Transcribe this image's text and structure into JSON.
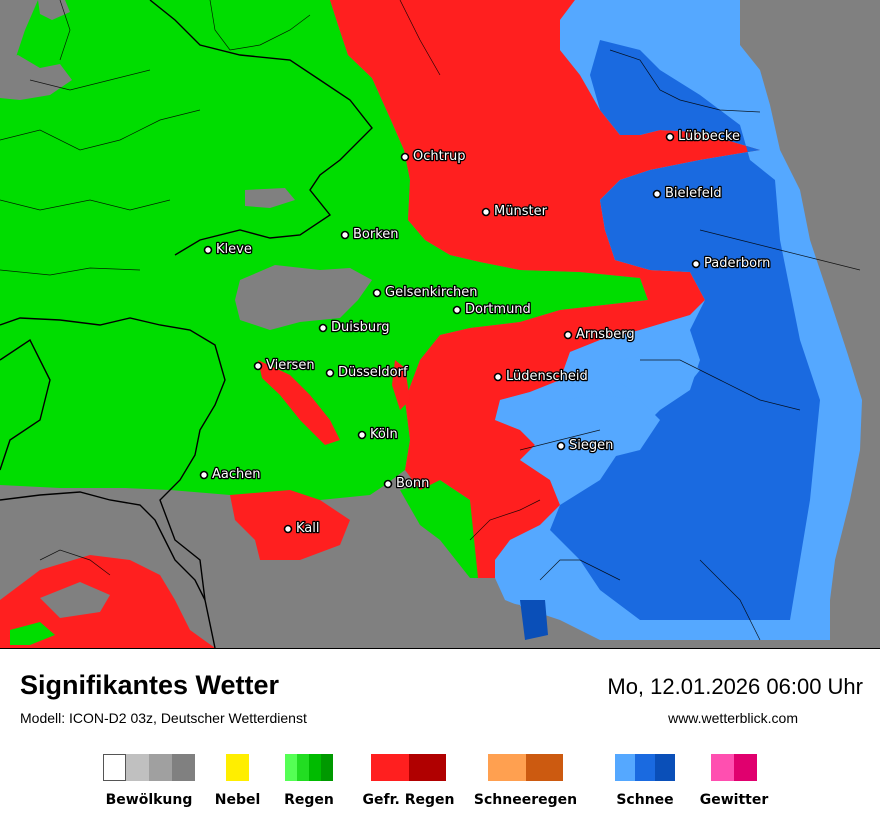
{
  "header": {
    "title": "Signifikantes Wetter",
    "model": "Modell: ICON-D2 03z, Deutscher Wetterdienst",
    "datetime": "Mo, 12.01.2026 06:00 Uhr",
    "website": "www.wetterblick.com"
  },
  "map": {
    "colors": {
      "gray": "#808080",
      "green": "#00dd00",
      "red": "#ff1f1f",
      "light_blue": "#55a8ff",
      "blue": "#1a6ae0",
      "dark_blue": "#0a4fb8"
    },
    "cities": [
      {
        "id": "luebbecke",
        "name": "Lübbecke"
      },
      {
        "id": "ochtrup",
        "name": "Ochtrup"
      },
      {
        "id": "bielefeld",
        "name": "Bielefeld"
      },
      {
        "id": "muenster",
        "name": "Münster"
      },
      {
        "id": "borken",
        "name": "Borken"
      },
      {
        "id": "kleve",
        "name": "Kleve"
      },
      {
        "id": "paderborn",
        "name": "Paderborn"
      },
      {
        "id": "gelsenkirchen",
        "name": "Gelsenkirchen"
      },
      {
        "id": "dortmund",
        "name": "Dortmund"
      },
      {
        "id": "duisburg",
        "name": "Duisburg"
      },
      {
        "id": "arnsberg",
        "name": "Arnsberg"
      },
      {
        "id": "viersen",
        "name": "Viersen"
      },
      {
        "id": "duesseldorf",
        "name": "Düsseldorf"
      },
      {
        "id": "luedenscheid",
        "name": "Lüdenscheid"
      },
      {
        "id": "koeln",
        "name": "Köln"
      },
      {
        "id": "siegen",
        "name": "Siegen"
      },
      {
        "id": "aachen",
        "name": "Aachen"
      },
      {
        "id": "bonn",
        "name": "Bonn"
      },
      {
        "id": "kall",
        "name": "Kall"
      }
    ]
  },
  "legend": [
    {
      "label": "Bewölkung",
      "colors": [
        "#ffffff",
        "#c0c0c0",
        "#a0a0a0",
        "#808080"
      ]
    },
    {
      "label": "Nebel",
      "colors": [
        "#ffee00"
      ]
    },
    {
      "label": "Regen",
      "colors": [
        "#55ff55",
        "#22dd22",
        "#00bb00",
        "#009900"
      ]
    },
    {
      "label": "Gefr. Regen",
      "colors": [
        "#ff1f1f",
        "#ff1f1f",
        "#b00000",
        "#b00000"
      ]
    },
    {
      "label": "Schneeregen",
      "colors": [
        "#ffa050",
        "#ffa050",
        "#cc5a10",
        "#cc5a10"
      ]
    },
    {
      "label": "Schnee",
      "colors": [
        "#55a8ff",
        "#1a6ae0",
        "#0a4fb8"
      ]
    },
    {
      "label": "Gewitter",
      "colors": [
        "#ff4fb0",
        "#e0006e"
      ]
    }
  ]
}
